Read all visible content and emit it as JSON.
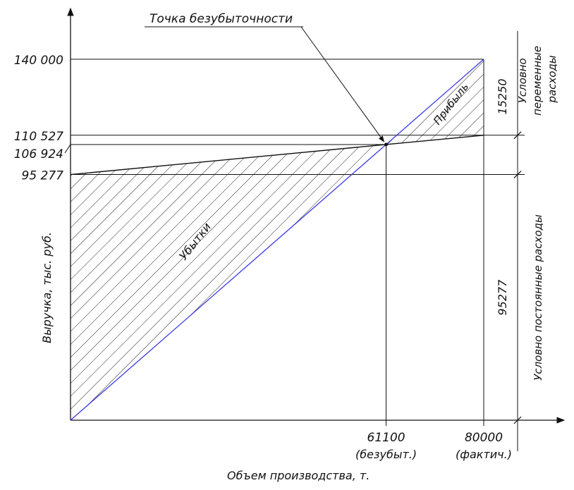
{
  "chart_data": {
    "type": "line",
    "title": "Точка безубыточности",
    "xlabel": "Объем производства, т.",
    "ylabel": "Выручка, тыс. руб.",
    "xlim": [
      0,
      80000
    ],
    "ylim": [
      0,
      140000
    ],
    "x_ticks": [
      {
        "value": 61100,
        "label": "61100",
        "sublabel": "(безубыт.)"
      },
      {
        "value": 80000,
        "label": "80000",
        "sublabel": "(фактич.)"
      }
    ],
    "y_ticks": [
      {
        "value": 140000,
        "label": "140 000"
      },
      {
        "value": 110527,
        "label": "110 527"
      },
      {
        "value": 106924,
        "label": "106 924"
      },
      {
        "value": 95277,
        "label": "95 277"
      }
    ],
    "series": [
      {
        "points": [
          [
            0,
            0
          ],
          [
            80000,
            140000
          ]
        ],
        "color": "#3a3ae0"
      },
      {
        "points": [
          [
            0,
            95277
          ],
          [
            61100,
            106924
          ],
          [
            80000,
            110527
          ]
        ],
        "color": "#111111"
      }
    ],
    "break_even": {
      "x": 61100,
      "y": 106924
    },
    "regions": {
      "loss": "Убытки",
      "profit": "Прибыль"
    },
    "dimensions": {
      "variable_value": "15250",
      "variable_label": "Условно переменные расходы",
      "fixed_value": "95277",
      "fixed_label": "Условно постоянные расходы"
    }
  }
}
